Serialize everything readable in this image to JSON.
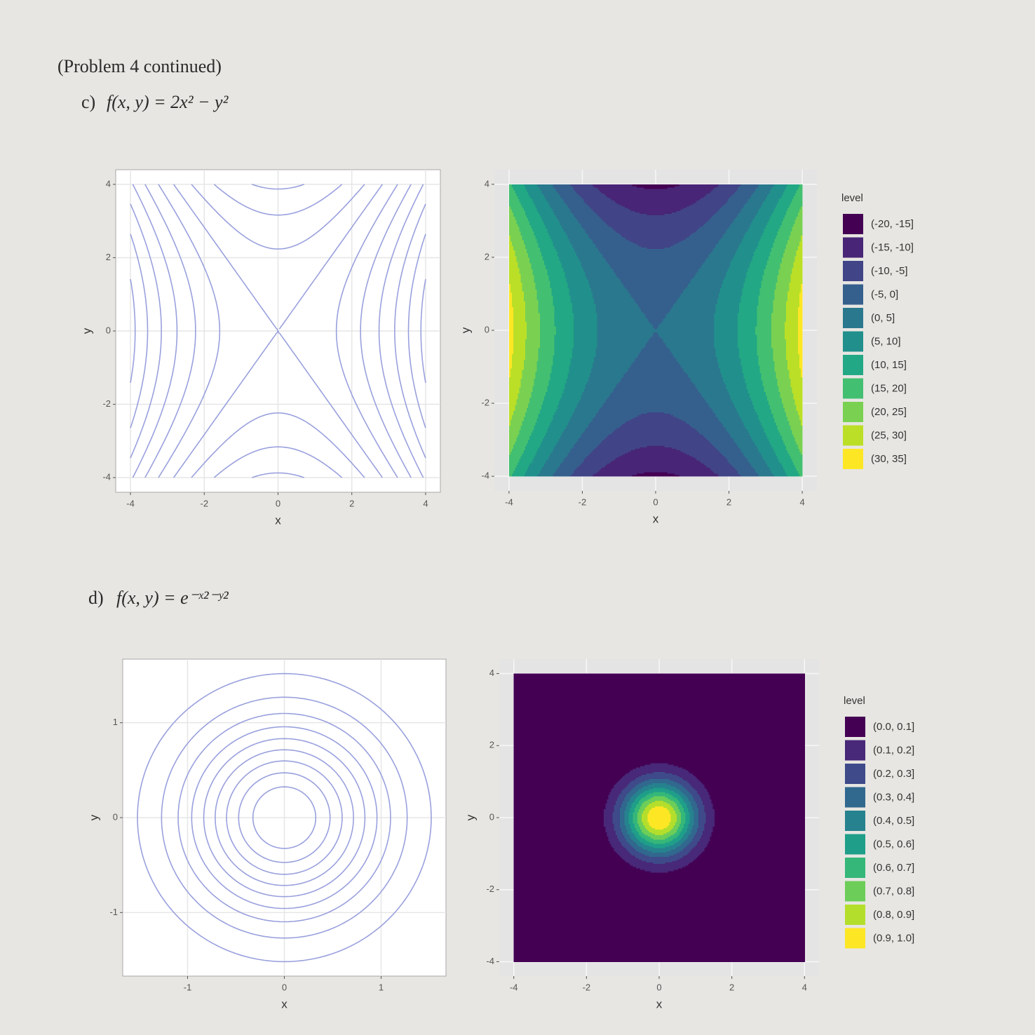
{
  "header": "(Problem 4 continued)",
  "problems": [
    {
      "label": "c)",
      "formula": "f(x, y) = 2x² − y²"
    },
    {
      "label": "d)",
      "formula": "f(x, y) = e⁻ˣ²⁻ʸ²"
    }
  ],
  "chart_data": [
    {
      "type": "contour",
      "xlabel": "x",
      "ylabel": "y",
      "xlim": [
        -4.4,
        4.4
      ],
      "ylim": [
        -4.4,
        4.4
      ],
      "xticks": [
        -4,
        -2,
        0,
        2,
        4
      ],
      "yticks": [
        -4,
        -2,
        0,
        2,
        4
      ],
      "domain": [
        -4,
        4
      ],
      "levels": [
        -15,
        -10,
        -5,
        0,
        5,
        10,
        15,
        20,
        25,
        30
      ],
      "color": "#99a0dd",
      "theme": "light"
    },
    {
      "type": "filled-contour",
      "xlabel": "x",
      "ylabel": "y",
      "xlim": [
        -4.4,
        4.4
      ],
      "ylim": [
        -4.4,
        4.4
      ],
      "xticks": [
        -4,
        -2,
        0,
        2,
        4
      ],
      "yticks": [
        -4,
        -2,
        0,
        2,
        4
      ],
      "domain": [
        -4,
        4
      ],
      "bins": [
        -20,
        -15,
        -10,
        -5,
        0,
        5,
        10,
        15,
        20,
        25,
        30,
        35
      ],
      "colors": [
        "#440154",
        "#482576",
        "#414487",
        "#35608D",
        "#2A788E",
        "#21908C",
        "#22A884",
        "#43BF71",
        "#7AD151",
        "#BBDF27",
        "#FDE725"
      ],
      "legend_title": "level",
      "legend_labels": [
        "(-20, -15]",
        "(-15, -10]",
        "(-10, -5]",
        "(-5, 0]",
        "(0, 5]",
        "(5, 10]",
        "(10, 15]",
        "(15, 20]",
        "(20, 25]",
        "(25, 30]",
        "(30, 35]"
      ],
      "theme": "gray"
    },
    {
      "type": "contour",
      "xlabel": "x",
      "ylabel": "y",
      "xlim": [
        -1.67,
        1.67
      ],
      "ylim": [
        -1.67,
        1.67
      ],
      "xticks": [
        -1,
        0,
        1
      ],
      "yticks": [
        -1,
        0,
        1
      ],
      "domain": [
        -1.6,
        1.6
      ],
      "levels": [
        0.1,
        0.2,
        0.3,
        0.4,
        0.5,
        0.6,
        0.7,
        0.8,
        0.9
      ],
      "color": "#99a0dd",
      "theme": "light"
    },
    {
      "type": "filled-contour",
      "xlabel": "x",
      "ylabel": "y",
      "xlim": [
        -4.4,
        4.4
      ],
      "ylim": [
        -4.4,
        4.4
      ],
      "xticks": [
        -4,
        -2,
        0,
        2,
        4
      ],
      "yticks": [
        -4,
        -2,
        0,
        2,
        4
      ],
      "domain": [
        -4,
        4
      ],
      "bins": [
        0,
        0.1,
        0.2,
        0.3,
        0.4,
        0.5,
        0.6,
        0.7,
        0.8,
        0.9,
        1.0
      ],
      "colors": [
        "#440154",
        "#482878",
        "#3E4A89",
        "#31688E",
        "#26828E",
        "#1F9E89",
        "#35B779",
        "#6DCD59",
        "#B4DE2C",
        "#FDE725"
      ],
      "legend_title": "level",
      "legend_labels": [
        "(0.0, 0.1]",
        "(0.1, 0.2]",
        "(0.2, 0.3]",
        "(0.3, 0.4]",
        "(0.4, 0.5]",
        "(0.5, 0.6]",
        "(0.6, 0.7]",
        "(0.7, 0.8]",
        "(0.8, 0.9]",
        "(0.9, 1.0]"
      ],
      "theme": "gray"
    }
  ]
}
